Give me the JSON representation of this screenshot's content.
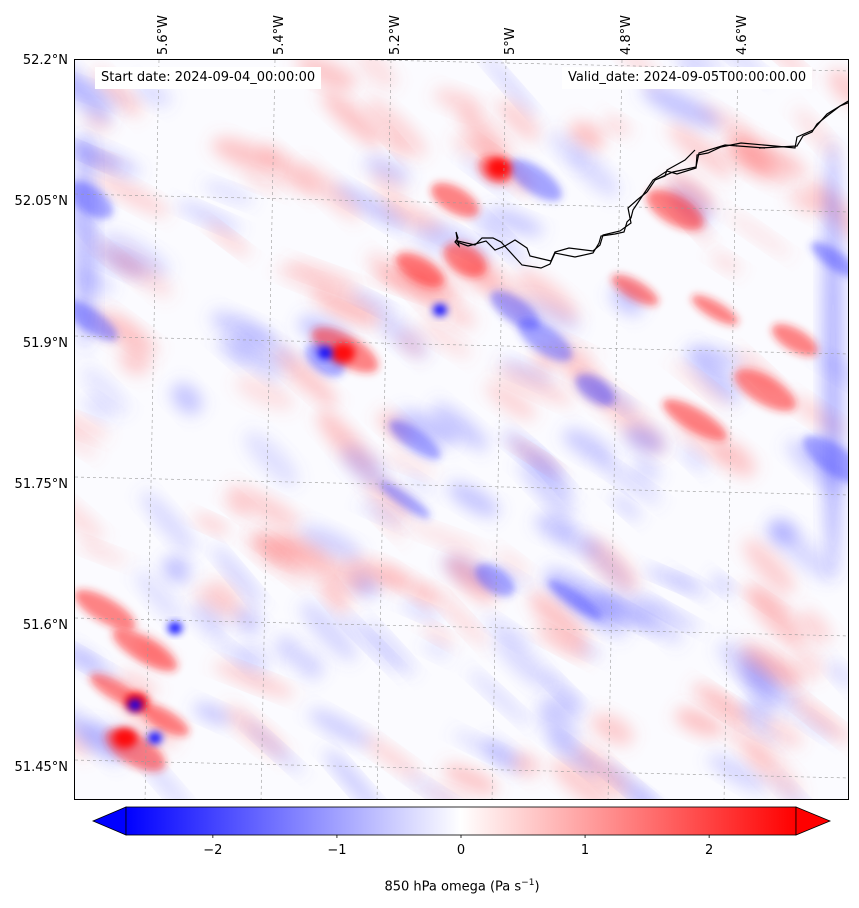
{
  "header": {
    "start_date": "Start date: 2024-09-04_00:00:00",
    "valid_date": "Valid_date: 2024-09-05T00:00:00.00"
  },
  "axes": {
    "latitude_labels": [
      "52.2°N",
      "52.05°N",
      "51.9°N",
      "51.75°N",
      "51.6°N",
      "51.45°N"
    ],
    "longitude_labels": [
      "5.6°W",
      "5.4°W",
      "5.2°W",
      "5°W",
      "4.8°W",
      "4.6°W"
    ]
  },
  "colorbar": {
    "ticks": [
      "−2",
      "−1",
      "0",
      "1",
      "2"
    ],
    "tick_values": [
      -2,
      -1,
      0,
      1,
      2
    ],
    "range": [
      -2.7,
      2.7
    ],
    "extend": "both",
    "colormap": "bwr",
    "title_text": "850 hPa omega (Pa s",
    "title_exponent": "−1",
    "title_close": ")"
  },
  "colors": {
    "coastline": "#000000",
    "negative": "#0000ff",
    "positive": "#ff0000",
    "neutral": "#ffffff"
  }
}
